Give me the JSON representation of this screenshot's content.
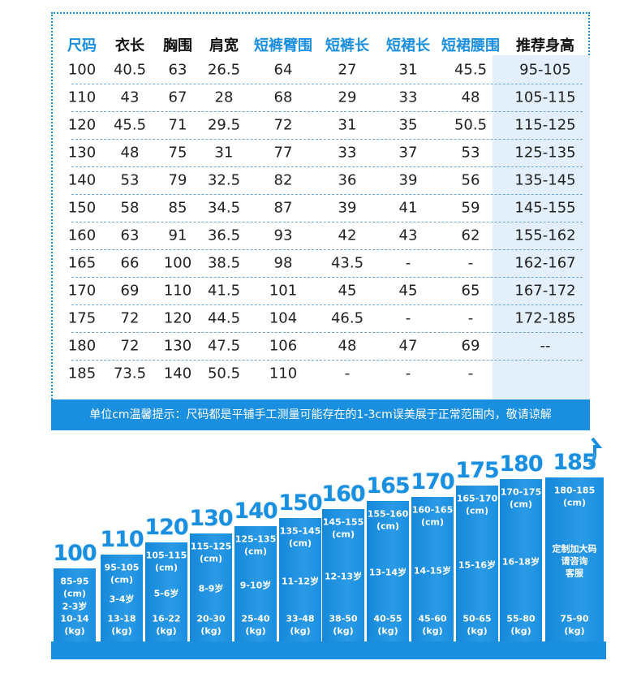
{
  "table": {
    "header": [
      "尺码",
      "衣长",
      "胸围",
      "肩宽",
      "短裤臂围",
      "短裤长",
      "短裙长",
      "短裙腰围",
      "推荐身高"
    ],
    "rows": [
      [
        "100",
        "40.5",
        "63",
        "26.5",
        "64",
        "27",
        "31",
        "45.5",
        "95-105"
      ],
      [
        "110",
        "43",
        "67",
        "28",
        "68",
        "29",
        "33",
        "48",
        "105-115"
      ],
      [
        "120",
        "45.5",
        "71",
        "29.5",
        "72",
        "31",
        "35",
        "50.5",
        "115-125"
      ],
      [
        "130",
        "48",
        "75",
        "31",
        "77",
        "33",
        "37",
        "53",
        "125-135"
      ],
      [
        "140",
        "53",
        "79",
        "32.5",
        "82",
        "36",
        "39",
        "56",
        "135-145"
      ],
      [
        "150",
        "58",
        "85",
        "34.5",
        "87",
        "39",
        "41",
        "59",
        "145-155"
      ],
      [
        "160",
        "63",
        "91",
        "36.5",
        "93",
        "42",
        "43",
        "62",
        "155-162"
      ],
      [
        "165",
        "66",
        "100",
        "38.5",
        "98",
        "43.5",
        "-",
        "-",
        "162-167"
      ],
      [
        "170",
        "69",
        "110",
        "41.5",
        "101",
        "45",
        "45",
        "65",
        "167-172"
      ],
      [
        "175",
        "72",
        "120",
        "44.5",
        "104",
        "46.5",
        "-",
        "-",
        "172-185"
      ],
      [
        "180",
        "72",
        "130",
        "47.5",
        "106",
        "48",
        "47",
        "69",
        "--"
      ],
      [
        "185",
        "73.5",
        "140",
        "50.5",
        "110",
        "-",
        "-",
        "-",
        ""
      ]
    ],
    "note": "单位cm温馨提示：尺码都是平铺手工测量可能存在的1-3cm误美展于正常范围内，敬请谅解"
  },
  "bars": [
    {
      "size": "100",
      "height": "85-95",
      "height_unit": "(cm)",
      "age": "2-3岁",
      "weight": "10-14",
      "weight_unit": "(kg)"
    },
    {
      "size": "110",
      "height": "95-105",
      "height_unit": "(cm)",
      "age": "3-4岁",
      "weight": "13-18",
      "weight_unit": "(kg)"
    },
    {
      "size": "120",
      "height": "105-115",
      "height_unit": "(cm)",
      "age": "5-6岁",
      "weight": "16-22",
      "weight_unit": "(kg)"
    },
    {
      "size": "130",
      "height": "115-125",
      "height_unit": "(cm)",
      "age": "8-9岁",
      "weight": "20-30",
      "weight_unit": "(kg)"
    },
    {
      "size": "140",
      "height": "125-135",
      "height_unit": "(cm)",
      "age": "9-10岁",
      "weight": "25-40",
      "weight_unit": "(kg)"
    },
    {
      "size": "150",
      "height": "135-145",
      "height_unit": "(cm)",
      "age": "11-12岁",
      "weight": "33-48",
      "weight_unit": "(kg)"
    },
    {
      "size": "160",
      "height": "145-155",
      "height_unit": "(cm)",
      "age": "12-13岁",
      "weight": "38-50",
      "weight_unit": "(kg)"
    },
    {
      "size": "165",
      "height": "155-160",
      "height_unit": "(cm)",
      "age": "13-14岁",
      "weight": "40-55",
      "weight_unit": "(kg)"
    },
    {
      "size": "170",
      "height": "160-165",
      "height_unit": "(cm)",
      "age": "14-15岁",
      "weight": "45-60",
      "weight_unit": "(kg)"
    },
    {
      "size": "175",
      "height": "165-170",
      "height_unit": "(cm)",
      "age": "15-16岁",
      "weight": "50-65",
      "weight_unit": "(kg)"
    },
    {
      "size": "180",
      "height": "170-175",
      "height_unit": "(cm)",
      "age": "16-18岁",
      "weight": "55-80",
      "weight_unit": "(kg)"
    },
    {
      "size": "185",
      "height": "180-185",
      "height_unit": "(cm)",
      "age": "定制加大码\n请咨询\n客服",
      "weight": "75-90",
      "weight_unit": "(kg)"
    }
  ]
}
